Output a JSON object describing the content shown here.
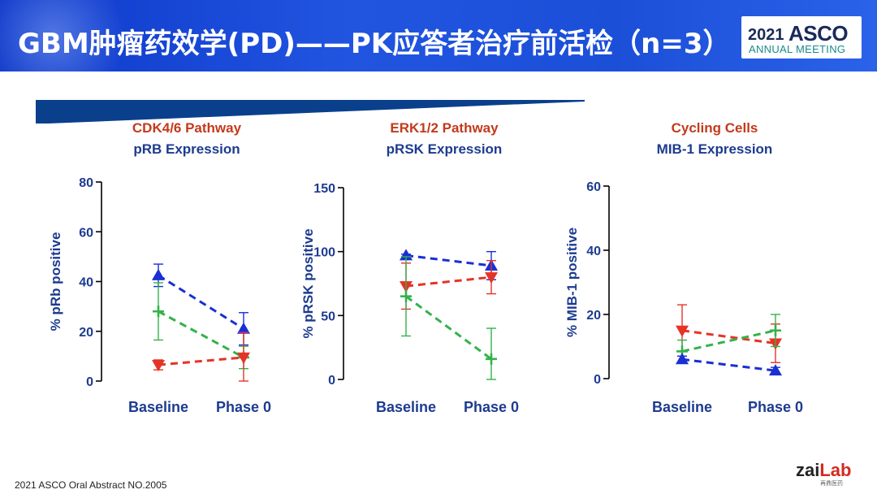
{
  "slide": {
    "title": "GBM肿瘤药效学(PD)——PK应答者治疗前活检（n=3）",
    "footnote": "2021 ASCO Oral Abstract NO.2005"
  },
  "logos": {
    "asco_year": "2021",
    "asco_name": "ASCO",
    "asco_sub": "ANNUAL MEETING",
    "zai_brand": "zai",
    "zai_brand_accent": "Lab",
    "zai_sub": "再鼎医药"
  },
  "colors": {
    "blue": "#1a2fd4",
    "red": "#e63327",
    "green": "#34b24a",
    "title_red": "#c33a1c",
    "navy": "#1d3b8f"
  },
  "chart_data": [
    {
      "type": "line",
      "title": "CDK4/6 Pathway",
      "subtitle": "pRB Expression",
      "ylabel": "% pRb positive",
      "categories": [
        "Baseline",
        "Phase 0"
      ],
      "ylim": [
        0,
        80
      ],
      "yticks": [
        0,
        20,
        40,
        60,
        80
      ],
      "series": [
        {
          "color": "#1a2fd4",
          "marker": "triangle-up",
          "values": [
            42.5,
            21
          ],
          "err": [
            4.5,
            6.5
          ]
        },
        {
          "color": "#34b24a",
          "marker": "plus",
          "values": [
            28,
            9.5
          ],
          "err": [
            11.5,
            4.5
          ]
        },
        {
          "color": "#e63327",
          "marker": "triangle-down",
          "values": [
            6.5,
            9.5
          ],
          "err": [
            2,
            10
          ]
        }
      ]
    },
    {
      "type": "line",
      "title": "ERK1/2 Pathway",
      "subtitle": "pRSK Expression",
      "ylabel": "% pRSK positive",
      "categories": [
        "Baseline",
        "Phase 0"
      ],
      "ylim": [
        0,
        150
      ],
      "yticks": [
        0,
        50,
        100,
        150
      ],
      "series": [
        {
          "color": "#1a2fd4",
          "marker": "triangle-up",
          "values": [
            97,
            89
          ],
          "err": [
            1,
            11
          ]
        },
        {
          "color": "#e63327",
          "marker": "triangle-down",
          "values": [
            73,
            80
          ],
          "err": [
            18,
            13
          ]
        },
        {
          "color": "#34b24a",
          "marker": "plus",
          "values": [
            65,
            16
          ],
          "err": [
            31,
            24
          ]
        }
      ]
    },
    {
      "type": "line",
      "title": "Cycling Cells",
      "subtitle": "MIB-1 Expression",
      "ylabel": "% MIB-1 positive",
      "categories": [
        "Baseline",
        "Phase 0"
      ],
      "ylim": [
        0,
        60
      ],
      "yticks": [
        0,
        20,
        40,
        60
      ],
      "series": [
        {
          "color": "#e63327",
          "marker": "triangle-down",
          "values": [
            15,
            11
          ],
          "err": [
            8,
            6
          ]
        },
        {
          "color": "#34b24a",
          "marker": "plus",
          "values": [
            8.5,
            15
          ],
          "err": [
            3.5,
            5
          ]
        },
        {
          "color": "#1a2fd4",
          "marker": "triangle-up",
          "values": [
            6,
            2.5
          ],
          "err": [
            1,
            1
          ]
        }
      ]
    }
  ]
}
